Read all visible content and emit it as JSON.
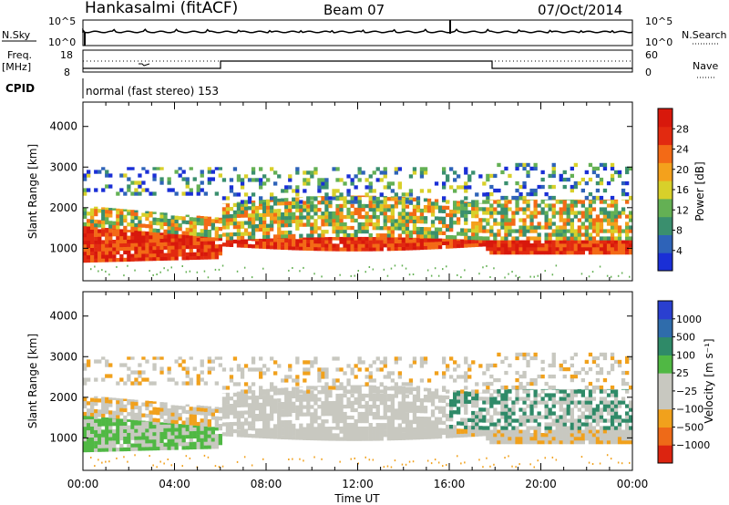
{
  "header": {
    "station": "Hankasalmi (fitACF)",
    "beam": "Beam 07",
    "date": "07/Oct/2014"
  },
  "top_panels": {
    "nsky_label": "N.Sky",
    "nsearch_label": "N.Search",
    "noise_ticks_left": [
      "10^5",
      "10^0"
    ],
    "noise_ticks_right": [
      "10^5",
      "10^0"
    ],
    "freq_label_line1": "Freq.",
    "freq_label_line2": "[MHz]",
    "freq_ticks": [
      "18",
      "8"
    ],
    "nave_label": "Nave",
    "nave_ticks": [
      "60",
      "0"
    ],
    "cpid_label": "CPID",
    "cpid_text": "normal (fast stereo) 153"
  },
  "colors": {
    "power_scale": [
      "#1a2fd6",
      "#2e63b8",
      "#3a8f6e",
      "#64b054",
      "#d8d02a",
      "#f4a11c",
      "#f36a16",
      "#e22a10",
      "#d8180c"
    ],
    "velocity_scale": [
      "#2a3fd0",
      "#2f6cab",
      "#2f8a68",
      "#50b844",
      "#c8c8c0",
      "#c8c8c0",
      "#f1a11c",
      "#ee6a18",
      "#dc2410"
    ]
  },
  "chart_data": [
    {
      "type": "heatmap",
      "name": "power",
      "ylabel": "Slant Range [km]",
      "y_ticks": [
        "1000",
        "2000",
        "3000",
        "4000"
      ],
      "ylim": [
        200,
        4600
      ],
      "xlim": [
        "00:00",
        "24:00"
      ],
      "colorbar": {
        "label": "Power [dB]",
        "ticks": [
          "4",
          "8",
          "12",
          "16",
          "20",
          "24",
          "28"
        ],
        "range": [
          0,
          32
        ]
      }
    },
    {
      "type": "heatmap",
      "name": "velocity",
      "ylabel": "Slant Range [km]",
      "y_ticks": [
        "1000",
        "2000",
        "3000",
        "4000"
      ],
      "ylim": [
        200,
        4600
      ],
      "xlim": [
        "00:00",
        "24:00"
      ],
      "colorbar": {
        "label": "Velocity [m s⁻¹]",
        "ticks": [
          "1000",
          "500",
          "100",
          "25",
          "−25",
          "−100",
          "−500",
          "−1000"
        ]
      }
    }
  ],
  "x_axis": {
    "ticks": [
      "00:00",
      "04:00",
      "08:00",
      "12:00",
      "16:00",
      "20:00",
      "00:00"
    ],
    "label": "Time UT"
  }
}
